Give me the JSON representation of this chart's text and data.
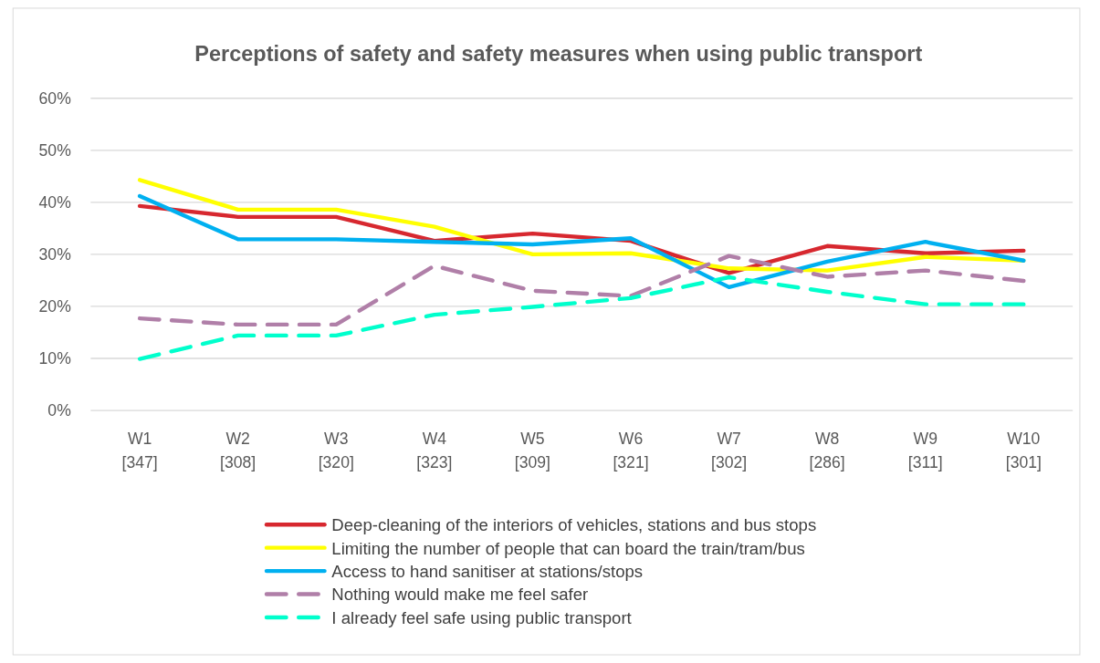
{
  "chart_data": {
    "type": "line",
    "title": "Perceptions of safety and safety measures when using public transport",
    "categories": [
      "W1\n[347]",
      "W2\n[308]",
      "W3\n[320]",
      "W4\n[323]",
      "W5\n[309]",
      "W6\n[321]",
      "W7\n[302]",
      "W8\n[286]",
      "W9\n[311]",
      "W10\n[301]"
    ],
    "ylim": [
      0,
      0.6
    ],
    "yticks": [
      {
        "value": 0,
        "label": "0%"
      },
      {
        "value": 0.1,
        "label": "10%"
      },
      {
        "value": 0.2,
        "label": "20%"
      },
      {
        "value": 0.3,
        "label": "30%"
      },
      {
        "value": 0.4,
        "label": "40%"
      },
      {
        "value": 0.5,
        "label": "50%"
      },
      {
        "value": 0.6,
        "label": "60%"
      }
    ],
    "grid": "y",
    "legend": "bottom",
    "marker": "none",
    "series": [
      {
        "name": "Deep-cleaning of the interiors of vehicles, stations and bus stops",
        "color": "#d7282f",
        "line_style": "solid",
        "values": [
          0.393,
          0.372,
          0.372,
          0.326,
          0.34,
          0.326,
          0.264,
          0.316,
          0.302,
          0.307
        ]
      },
      {
        "name": "Limiting the number of people that can board the train/tram/bus",
        "color": "#ffff00",
        "line_style": "solid",
        "values": [
          0.443,
          0.386,
          0.386,
          0.353,
          0.3,
          0.302,
          0.273,
          0.269,
          0.295,
          0.288
        ]
      },
      {
        "name": "Access to hand sanitiser at stations/stops",
        "color": "#00b0f0",
        "line_style": "solid",
        "values": [
          0.412,
          0.329,
          0.329,
          0.324,
          0.319,
          0.331,
          0.237,
          0.286,
          0.324,
          0.288
        ]
      },
      {
        "name": "Nothing would make me feel safer",
        "color": "#b07fa8",
        "line_style": "dashed",
        "values": [
          0.177,
          0.165,
          0.165,
          0.278,
          0.23,
          0.22,
          0.297,
          0.257,
          0.269,
          0.249
        ]
      },
      {
        "name": "I already feel safe using public transport",
        "color": "#00ffcc",
        "line_style": "dashed",
        "values": [
          0.099,
          0.144,
          0.144,
          0.184,
          0.199,
          0.216,
          0.256,
          0.228,
          0.204,
          0.204
        ]
      }
    ]
  }
}
